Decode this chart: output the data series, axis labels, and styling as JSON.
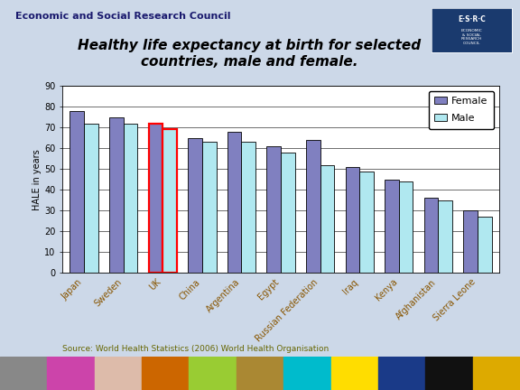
{
  "title": "Healthy life expectancy at birth for selected\ncountries, male and female.",
  "header": "Economic and Social Research Council",
  "ylabel": "HALE in years",
  "source": "Source: World Health Statistics (2006) World Health Organisation",
  "countries": [
    "Japan",
    "Sweden",
    "UK",
    "China",
    "Argentina",
    "Egypt",
    "Russian Federation",
    "Iraq",
    "Kenya",
    "Afghanistan",
    "Sierra Leone"
  ],
  "female": [
    78,
    75,
    72,
    65,
    68,
    61,
    64,
    51,
    45,
    36,
    30
  ],
  "male": [
    72,
    72,
    69,
    63,
    63,
    58,
    52,
    49,
    44,
    35,
    27
  ],
  "female_color": "#8080c0",
  "male_color": "#b0e8f0",
  "uk_female_edge": "red",
  "uk_male_edge": "red",
  "normal_edge": "black",
  "background_color": "#ccd8e8",
  "plot_bg": "#ffffff",
  "ylim": [
    0,
    90
  ],
  "yticks": [
    0,
    10,
    20,
    30,
    40,
    50,
    60,
    70,
    80,
    90
  ],
  "title_fontsize": 11,
  "header_fontsize": 8,
  "axis_fontsize": 7,
  "strip_colors": [
    "#888888",
    "#cc44aa",
    "#ddbbaa",
    "#cc6600",
    "#99cc33",
    "#aa8833",
    "#00bbcc",
    "#ffdd00",
    "#1a3a88",
    "#111111",
    "#ddaa00"
  ]
}
